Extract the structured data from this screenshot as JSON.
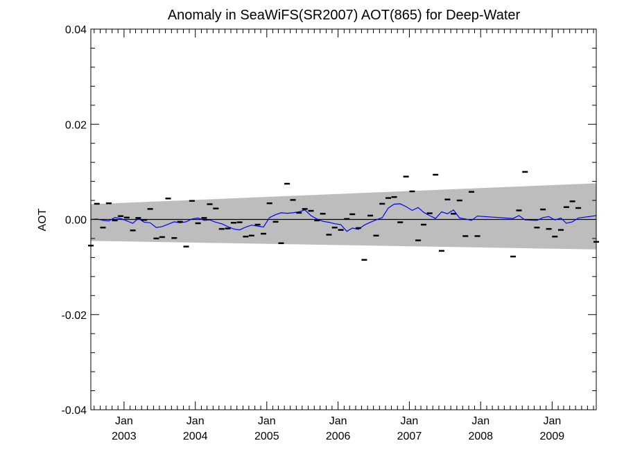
{
  "chart_data": {
    "type": "line",
    "title": "Anomaly in SeaWiFS(SR2007) AOT(865) for Deep-Water",
    "xlabel": "",
    "ylabel": "AOT",
    "xlim": [
      "2002-07-15",
      "2009-08-15"
    ],
    "ylim": [
      -0.04,
      0.04
    ],
    "y_ticks": [
      {
        "value": 0.04,
        "label": "0.04"
      },
      {
        "value": 0.02,
        "label": "0.02"
      },
      {
        "value": 0.0,
        "label": "0.00"
      },
      {
        "value": -0.02,
        "label": "-0.02"
      },
      {
        "value": -0.04,
        "label": "-0.04"
      }
    ],
    "x_ticks": [
      {
        "date": "2003-01-01",
        "month": "Jan",
        "year": "2003"
      },
      {
        "date": "2004-01-01",
        "month": "Jan",
        "year": "2004"
      },
      {
        "date": "2005-01-01",
        "month": "Jan",
        "year": "2005"
      },
      {
        "date": "2006-01-01",
        "month": "Jan",
        "year": "2006"
      },
      {
        "date": "2007-01-01",
        "month": "Jan",
        "year": "2007"
      },
      {
        "date": "2008-01-01",
        "month": "Jan",
        "year": "2008"
      },
      {
        "date": "2009-01-01",
        "month": "Jan",
        "year": "2009"
      }
    ],
    "grid": false,
    "legend": "none",
    "band": {
      "color": "#bdbdbd",
      "upper": [
        {
          "x": "2002-07-15",
          "y": 0.0032
        },
        {
          "x": "2009-08-15",
          "y": 0.0076
        }
      ],
      "lower": [
        {
          "x": "2002-07-15",
          "y": -0.0045
        },
        {
          "x": "2009-08-15",
          "y": -0.0063
        }
      ]
    },
    "zero_line": {
      "y": 0.0,
      "color": "#000000"
    },
    "series": [
      {
        "type": "scatter",
        "marker": "dash",
        "color": "#000000",
        "points": [
          {
            "x": "2002-07-15",
            "y": -0.0055
          },
          {
            "x": "2002-08-15",
            "y": 0.0033
          },
          {
            "x": "2002-09-15",
            "y": -0.0017
          },
          {
            "x": "2002-10-15",
            "y": 0.0034
          },
          {
            "x": "2002-11-15",
            "y": -0.0002
          },
          {
            "x": "2002-12-15",
            "y": 0.0007
          },
          {
            "x": "2003-01-15",
            "y": 0.0004
          },
          {
            "x": "2003-02-15",
            "y": -0.0023
          },
          {
            "x": "2003-03-15",
            "y": 0.0003
          },
          {
            "x": "2003-04-15",
            "y": -0.0001
          },
          {
            "x": "2003-05-15",
            "y": 0.0022
          },
          {
            "x": "2003-06-15",
            "y": -0.004
          },
          {
            "x": "2003-07-15",
            "y": -0.0037
          },
          {
            "x": "2003-08-15",
            "y": 0.0044
          },
          {
            "x": "2003-09-15",
            "y": -0.0039
          },
          {
            "x": "2003-10-15",
            "y": -0.0005
          },
          {
            "x": "2003-11-15",
            "y": -0.0057
          },
          {
            "x": "2003-12-15",
            "y": 0.0039
          },
          {
            "x": "2004-01-15",
            "y": -0.0008
          },
          {
            "x": "2004-02-15",
            "y": 0.0003
          },
          {
            "x": "2004-03-15",
            "y": 0.0032
          },
          {
            "x": "2004-04-15",
            "y": 0.0023
          },
          {
            "x": "2004-05-15",
            "y": -0.002
          },
          {
            "x": "2004-06-15",
            "y": -0.0019
          },
          {
            "x": "2004-07-15",
            "y": -0.0007
          },
          {
            "x": "2004-08-15",
            "y": -0.0006
          },
          {
            "x": "2004-09-15",
            "y": -0.0036
          },
          {
            "x": "2004-10-15",
            "y": -0.0034
          },
          {
            "x": "2004-11-15",
            "y": -0.0011
          },
          {
            "x": "2004-12-15",
            "y": -0.003
          },
          {
            "x": "2005-01-15",
            "y": 0.0034
          },
          {
            "x": "2005-02-15",
            "y": -0.0005
          },
          {
            "x": "2005-03-15",
            "y": -0.005
          },
          {
            "x": "2005-04-15",
            "y": 0.0075
          },
          {
            "x": "2005-05-15",
            "y": 0.0041
          },
          {
            "x": "2005-06-15",
            "y": 0.0014
          },
          {
            "x": "2005-07-15",
            "y": 0.0022
          },
          {
            "x": "2005-08-15",
            "y": 0.0018
          },
          {
            "x": "2005-09-15",
            "y": -0.0002
          },
          {
            "x": "2005-10-15",
            "y": 0.0012
          },
          {
            "x": "2005-11-15",
            "y": -0.0032
          },
          {
            "x": "2005-12-15",
            "y": -0.0017
          },
          {
            "x": "2006-01-15",
            "y": -0.0022
          },
          {
            "x": "2006-02-15",
            "y": 0.0001
          },
          {
            "x": "2006-03-15",
            "y": 0.0011
          },
          {
            "x": "2006-04-15",
            "y": -0.0018
          },
          {
            "x": "2006-05-15",
            "y": -0.0085
          },
          {
            "x": "2006-06-15",
            "y": 0.0008
          },
          {
            "x": "2006-07-15",
            "y": -0.0034
          },
          {
            "x": "2006-08-15",
            "y": 0.0033
          },
          {
            "x": "2006-09-15",
            "y": 0.0045
          },
          {
            "x": "2006-10-15",
            "y": 0.0047
          },
          {
            "x": "2006-11-15",
            "y": -0.0006
          },
          {
            "x": "2006-12-15",
            "y": 0.009
          },
          {
            "x": "2007-01-15",
            "y": 0.0059
          },
          {
            "x": "2007-02-15",
            "y": -0.0044
          },
          {
            "x": "2007-03-15",
            "y": -0.0011
          },
          {
            "x": "2007-04-15",
            "y": 0.0013
          },
          {
            "x": "2007-05-15",
            "y": 0.0094
          },
          {
            "x": "2007-06-15",
            "y": -0.0066
          },
          {
            "x": "2007-07-15",
            "y": 0.0042
          },
          {
            "x": "2007-08-15",
            "y": 0.0012
          },
          {
            "x": "2007-09-15",
            "y": 0.004
          },
          {
            "x": "2007-10-15",
            "y": -0.0035
          },
          {
            "x": "2007-11-15",
            "y": 0.0058
          },
          {
            "x": "2007-12-15",
            "y": -0.0035
          },
          {
            "x": "2008-06-15",
            "y": -0.0078
          },
          {
            "x": "2008-07-15",
            "y": 0.0019
          },
          {
            "x": "2008-08-15",
            "y": 0.01
          },
          {
            "x": "2008-10-15",
            "y": -0.0017
          },
          {
            "x": "2008-11-15",
            "y": 0.0021
          },
          {
            "x": "2008-12-15",
            "y": -0.002
          },
          {
            "x": "2009-01-15",
            "y": -0.0036
          },
          {
            "x": "2009-02-15",
            "y": -0.0022
          },
          {
            "x": "2009-03-15",
            "y": 0.0026
          },
          {
            "x": "2009-04-15",
            "y": 0.0038
          },
          {
            "x": "2009-05-15",
            "y": 0.0024
          },
          {
            "x": "2009-08-15",
            "y": -0.0047
          }
        ]
      },
      {
        "type": "line",
        "color": "#0000ff",
        "points": [
          {
            "x": "2002-07-15",
            "y": 0.0
          },
          {
            "x": "2002-08-15",
            "y": 0.0001
          },
          {
            "x": "2002-09-15",
            "y": -0.0002
          },
          {
            "x": "2002-10-15",
            "y": -0.0003
          },
          {
            "x": "2002-11-15",
            "y": 0.0004
          },
          {
            "x": "2002-12-15",
            "y": 0.0002
          },
          {
            "x": "2003-01-15",
            "y": -0.0003
          },
          {
            "x": "2003-02-15",
            "y": -0.0008
          },
          {
            "x": "2003-03-15",
            "y": 0.0002
          },
          {
            "x": "2003-04-15",
            "y": -0.0006
          },
          {
            "x": "2003-05-15",
            "y": -0.0007
          },
          {
            "x": "2003-06-15",
            "y": -0.0017
          },
          {
            "x": "2003-07-15",
            "y": -0.0015
          },
          {
            "x": "2003-08-15",
            "y": -0.001
          },
          {
            "x": "2003-09-15",
            "y": -0.0005
          },
          {
            "x": "2003-10-15",
            "y": -0.0007
          },
          {
            "x": "2003-11-15",
            "y": -0.0005
          },
          {
            "x": "2003-12-15",
            "y": 0.0001
          },
          {
            "x": "2004-01-15",
            "y": 0.0003
          },
          {
            "x": "2004-02-15",
            "y": -0.0002
          },
          {
            "x": "2004-03-15",
            "y": -0.0001
          },
          {
            "x": "2004-04-15",
            "y": -0.0006
          },
          {
            "x": "2004-05-15",
            "y": -0.0009
          },
          {
            "x": "2004-06-15",
            "y": -0.0015
          },
          {
            "x": "2004-07-15",
            "y": -0.002
          },
          {
            "x": "2004-08-15",
            "y": -0.0022
          },
          {
            "x": "2004-09-15",
            "y": -0.0016
          },
          {
            "x": "2004-10-15",
            "y": -0.0012
          },
          {
            "x": "2004-11-15",
            "y": -0.0014
          },
          {
            "x": "2004-12-15",
            "y": -0.0016
          },
          {
            "x": "2005-01-15",
            "y": 0.0004
          },
          {
            "x": "2005-02-15",
            "y": 0.001
          },
          {
            "x": "2005-03-15",
            "y": 0.0014
          },
          {
            "x": "2005-04-15",
            "y": 0.0013
          },
          {
            "x": "2005-05-15",
            "y": 0.0014
          },
          {
            "x": "2005-06-15",
            "y": 0.0016
          },
          {
            "x": "2005-07-15",
            "y": 0.002
          },
          {
            "x": "2005-08-15",
            "y": 0.0008
          },
          {
            "x": "2005-09-15",
            "y": 0.0001
          },
          {
            "x": "2005-10-15",
            "y": -0.0004
          },
          {
            "x": "2005-11-15",
            "y": -0.0006
          },
          {
            "x": "2005-12-15",
            "y": -0.0009
          },
          {
            "x": "2006-01-15",
            "y": -0.0011
          },
          {
            "x": "2006-02-15",
            "y": -0.0025
          },
          {
            "x": "2006-03-15",
            "y": -0.0018
          },
          {
            "x": "2006-04-15",
            "y": -0.0021
          },
          {
            "x": "2006-05-15",
            "y": -0.0012
          },
          {
            "x": "2006-06-15",
            "y": -0.0006
          },
          {
            "x": "2006-07-15",
            "y": -0.0001
          },
          {
            "x": "2006-08-15",
            "y": 0.0004
          },
          {
            "x": "2006-09-15",
            "y": 0.0024
          },
          {
            "x": "2006-10-15",
            "y": 0.0032
          },
          {
            "x": "2006-11-15",
            "y": 0.0033
          },
          {
            "x": "2006-12-15",
            "y": 0.0027
          },
          {
            "x": "2007-01-15",
            "y": 0.0019
          },
          {
            "x": "2007-02-15",
            "y": 0.0025
          },
          {
            "x": "2007-03-15",
            "y": 0.0015
          },
          {
            "x": "2007-04-15",
            "y": 0.0008
          },
          {
            "x": "2007-05-15",
            "y": 0.0002
          },
          {
            "x": "2007-06-15",
            "y": 0.0016
          },
          {
            "x": "2007-07-15",
            "y": 0.0012
          },
          {
            "x": "2007-08-15",
            "y": 0.002
          },
          {
            "x": "2007-09-15",
            "y": 0.0003
          },
          {
            "x": "2007-10-15",
            "y": 0.0001
          },
          {
            "x": "2007-11-15",
            "y": -0.0002
          },
          {
            "x": "2007-12-15",
            "y": 0.0007
          },
          {
            "x": "2008-06-15",
            "y": 0.0002
          },
          {
            "x": "2008-07-15",
            "y": 0.0008
          },
          {
            "x": "2008-08-15",
            "y": -0.0001
          },
          {
            "x": "2008-10-15",
            "y": -0.0002
          },
          {
            "x": "2008-11-15",
            "y": 0.0004
          },
          {
            "x": "2008-12-15",
            "y": 0.0006
          },
          {
            "x": "2009-01-15",
            "y": -0.0001
          },
          {
            "x": "2009-02-15",
            "y": 0.0003
          },
          {
            "x": "2009-03-15",
            "y": -0.0008
          },
          {
            "x": "2009-04-15",
            "y": -0.0005
          },
          {
            "x": "2009-05-15",
            "y": 0.0003
          },
          {
            "x": "2009-08-15",
            "y": 0.0008
          }
        ]
      }
    ]
  }
}
